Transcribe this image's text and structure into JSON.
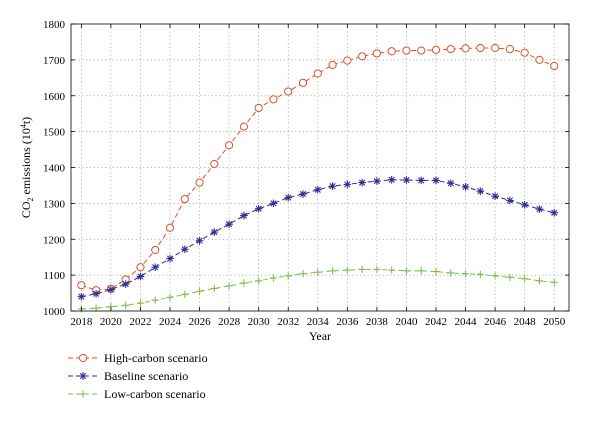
{
  "chart_data": {
    "type": "line",
    "xlabel": "Year",
    "ylabel_main": "CO",
    "ylabel_sub": "2",
    "ylabel_mid": " emissions (10",
    "ylabel_sup": "4",
    "ylabel_unit": "t)",
    "xlim": [
      2017.3,
      2051
    ],
    "ylim": [
      1000,
      1800
    ],
    "xticks": [
      2018,
      2020,
      2022,
      2024,
      2026,
      2028,
      2030,
      2032,
      2034,
      2036,
      2038,
      2040,
      2042,
      2044,
      2046,
      2048,
      2050
    ],
    "yticks": [
      1000,
      1100,
      1200,
      1300,
      1400,
      1500,
      1600,
      1700,
      1800
    ],
    "grid": true,
    "legend_position": "bottom-left",
    "x": [
      2018,
      2019,
      2020,
      2021,
      2022,
      2023,
      2024,
      2025,
      2026,
      2027,
      2028,
      2029,
      2030,
      2031,
      2032,
      2033,
      2034,
      2035,
      2036,
      2037,
      2038,
      2039,
      2040,
      2041,
      2042,
      2043,
      2044,
      2045,
      2046,
      2047,
      2048,
      2049,
      2050
    ],
    "series": [
      {
        "name": "High-carbon scenario",
        "color": "#e0502a",
        "marker": "circle",
        "values": [
          1072,
          1058,
          1062,
          1088,
          1122,
          1170,
          1232,
          1312,
          1358,
          1410,
          1462,
          1514,
          1566,
          1590,
          1612,
          1636,
          1662,
          1686,
          1698,
          1710,
          1718,
          1724,
          1726,
          1726,
          1728,
          1730,
          1732,
          1733,
          1733,
          1730,
          1720,
          1700,
          1683
        ]
      },
      {
        "name": "Baseline scenario",
        "color": "#2c2f8f",
        "marker": "star",
        "values": [
          1040,
          1048,
          1060,
          1075,
          1096,
          1122,
          1146,
          1172,
          1196,
          1220,
          1242,
          1266,
          1285,
          1300,
          1316,
          1326,
          1338,
          1348,
          1353,
          1358,
          1362,
          1366,
          1365,
          1364,
          1364,
          1356,
          1346,
          1334,
          1320,
          1308,
          1296,
          1284,
          1274
        ]
      },
      {
        "name": "Low-carbon scenario",
        "color": "#7dc04a",
        "marker": "plus",
        "values": [
          1006,
          1008,
          1012,
          1016,
          1022,
          1030,
          1038,
          1046,
          1055,
          1063,
          1070,
          1078,
          1084,
          1092,
          1098,
          1104,
          1108,
          1112,
          1114,
          1116,
          1116,
          1114,
          1112,
          1112,
          1110,
          1106,
          1104,
          1102,
          1098,
          1094,
          1090,
          1084,
          1080
        ]
      }
    ]
  }
}
